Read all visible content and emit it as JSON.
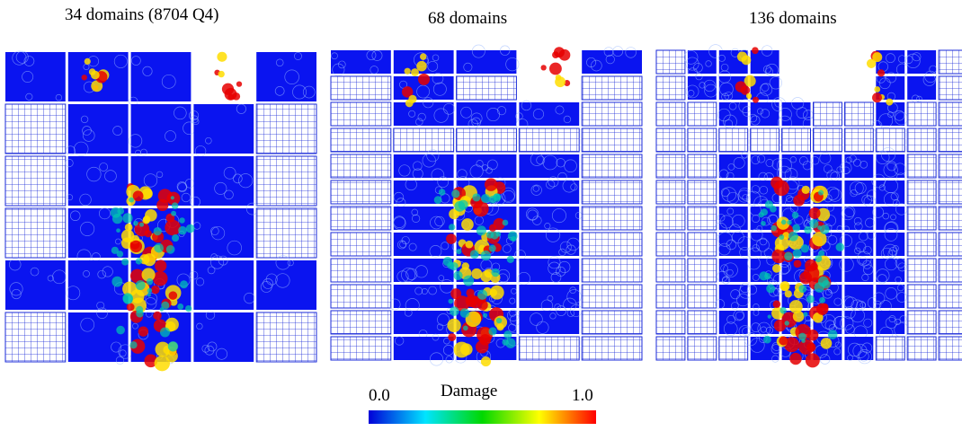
{
  "panels": [
    {
      "title": "34 domains  (8704 Q4)",
      "rows": [
        58,
        58,
        58,
        58,
        58,
        58
      ],
      "layout": [
        "CSSEC",
        "MCCCM",
        "MCCCM",
        "MCCCM",
        "CCCCC",
        "MCCCM"
      ]
    },
    {
      "title": "68 domains",
      "rows": [
        29,
        29,
        29,
        29,
        29,
        29,
        29,
        29,
        29,
        29,
        29,
        29
      ],
      "layout": [
        "CSSEC",
        "MSMEM",
        "MCCCM",
        "MMMMM",
        "MCCCM",
        "MCCCM",
        "MCCCM",
        "MCCCM",
        "MCCCM",
        "MCCCM",
        "MCCCM",
        "MCCMM"
      ]
    },
    {
      "title": "136 domains",
      "rows": [
        29,
        29,
        29,
        29,
        29,
        29,
        29,
        29,
        29,
        29,
        29,
        29
      ],
      "layout": [
        "MCSSEEESSM",
        "MCSSEEESSM",
        "MMCCCMMCMM",
        "MMMMMMMMMM",
        "MMCCCCCCMM",
        "MMCCCCCCMM",
        "MMCCCCCCMM",
        "MMCCCCCCMM",
        "MMCCCCCCMM",
        "MMCCCCCCMM",
        "MMCCCCCCMM",
        "MMMCCCCMMM"
      ]
    }
  ],
  "colorbar": {
    "title": "Damage",
    "min_label": "0.0",
    "max_label": "1.0",
    "stops": [
      "#0000d8",
      "#00e4ff",
      "#00d800",
      "#ffff00",
      "#ff0000"
    ]
  },
  "colors": {
    "intact": "#0a14f0",
    "mesh_line": "#1a2ad8",
    "damage_high": "#e60000",
    "damage_mid": "#ffdd00",
    "damage_low": "#00c8b0"
  }
}
